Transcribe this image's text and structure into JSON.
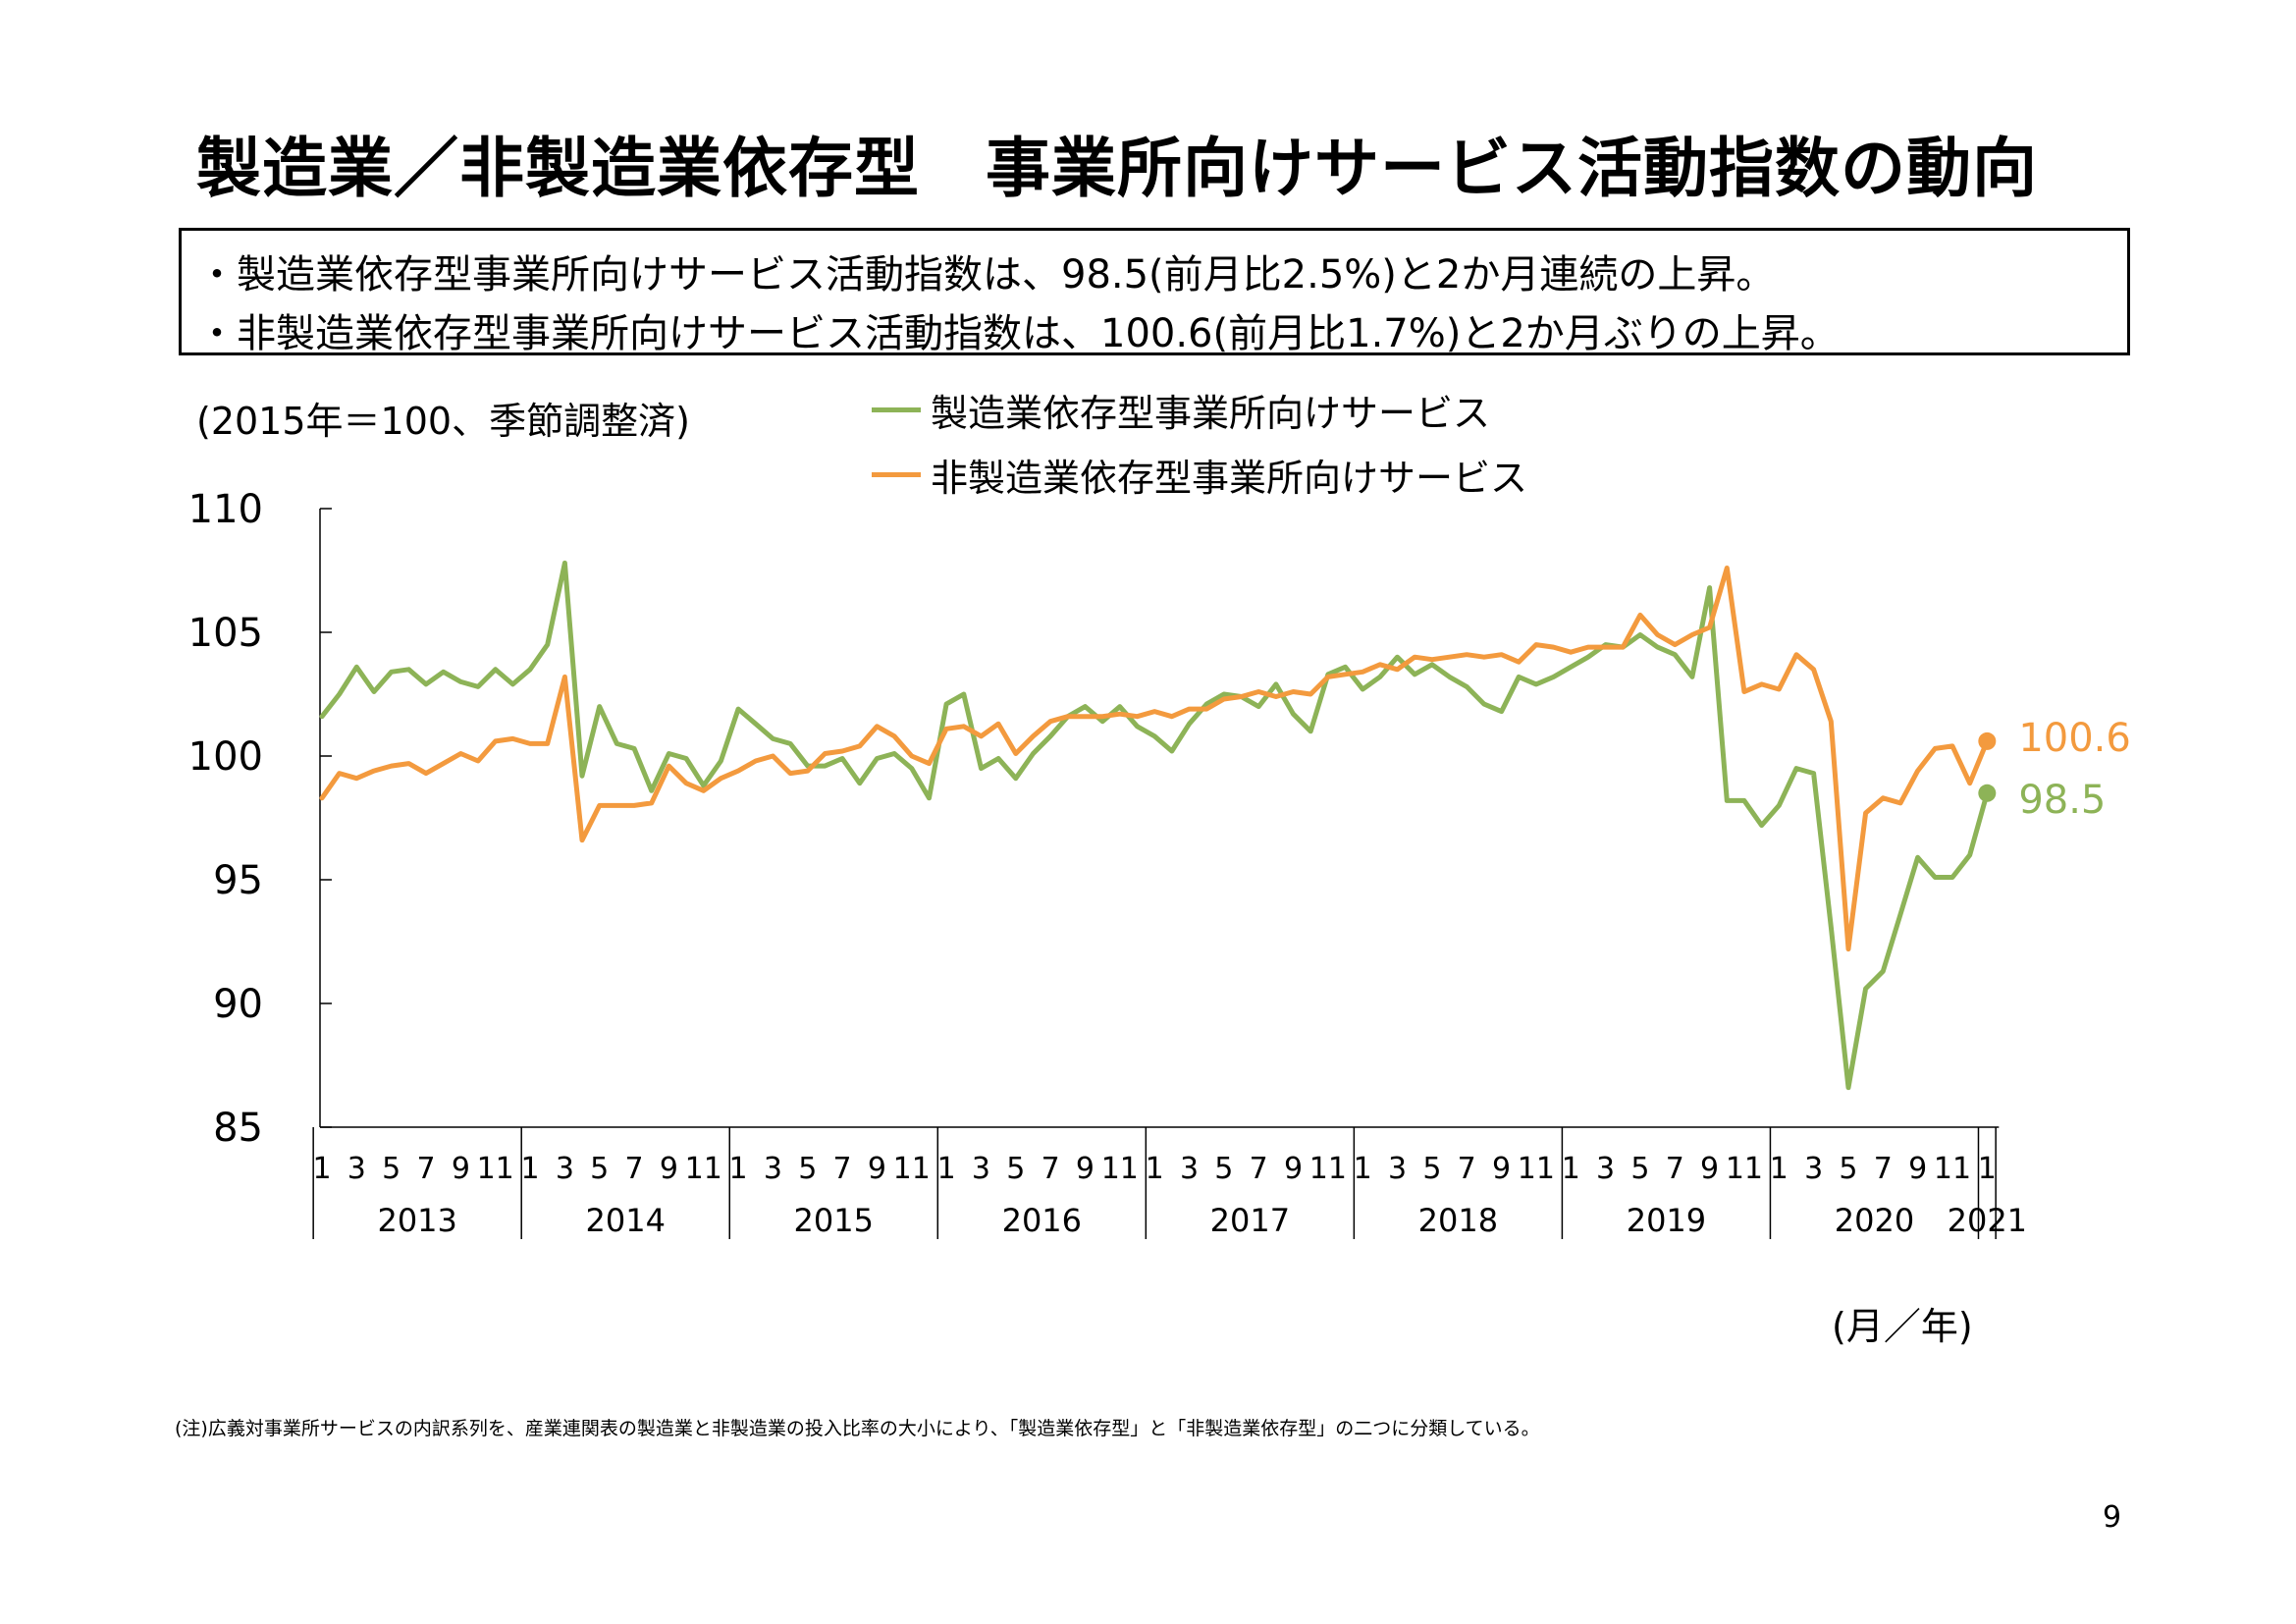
{
  "title": "製造業／非製造業依存型　事業所向けサービス活動指数の動向",
  "summary": {
    "line1": "・製造業依存型事業所向けサービス活動指数は、98.5(前月比2.5%)と2か月連続の上昇。",
    "line2": "・非製造業依存型事業所向けサービス活動指数は、100.6(前月比1.7%)と2か月ぶりの上昇。"
  },
  "unit_note": "(2015年＝100、季節調整済)",
  "axis_unit": "(月／年)",
  "footnote": "(注)広義対事業所サービスの内訳系列を、産業連関表の製造業と非製造業の投入比率の大小により、「製造業依存型」と「非製造業依存型」の二つに分類している。",
  "page_number": "9",
  "colors": {
    "green": "#8db357",
    "orange": "#f39a3e"
  },
  "chart_data": {
    "type": "line",
    "ylim": [
      85,
      110
    ],
    "yticks": [
      "110",
      "105",
      "100",
      "95",
      "90",
      "85"
    ],
    "month_labels": [
      "1",
      "3",
      "5",
      "7",
      "9",
      "11"
    ],
    "years": [
      "2013",
      "2014",
      "2015",
      "2016",
      "2017",
      "2018",
      "2019",
      "2020",
      "2021"
    ],
    "x_start": "2013-01",
    "x_end": "2021-01",
    "series": [
      {
        "name": "製造業依存型事業所向けサービス",
        "color": "#8db357",
        "end_label": "98.5",
        "values": [
          101.6,
          102.5,
          103.6,
          102.6,
          103.4,
          103.5,
          102.9,
          103.4,
          103.0,
          102.8,
          103.5,
          102.9,
          103.5,
          104.5,
          107.8,
          99.2,
          102.0,
          100.5,
          100.3,
          98.6,
          100.1,
          99.9,
          98.8,
          99.8,
          101.9,
          101.3,
          100.7,
          100.5,
          99.6,
          99.6,
          99.9,
          98.9,
          99.9,
          100.1,
          99.5,
          98.3,
          102.1,
          102.5,
          99.5,
          99.9,
          99.1,
          100.1,
          100.8,
          101.6,
          102.0,
          101.4,
          102.0,
          101.2,
          100.8,
          100.2,
          101.3,
          102.1,
          102.5,
          102.4,
          102.0,
          102.9,
          101.7,
          101.0,
          103.3,
          103.6,
          102.7,
          103.2,
          104.0,
          103.3,
          103.7,
          103.2,
          102.8,
          102.1,
          101.8,
          103.2,
          102.9,
          103.2,
          103.6,
          104.0,
          104.5,
          104.4,
          104.9,
          104.4,
          104.1,
          103.2,
          106.8,
          98.2,
          98.2,
          97.2,
          98.0,
          99.5,
          99.3,
          93.1,
          86.6,
          90.6,
          91.3,
          93.6,
          95.9,
          95.1,
          95.1,
          96.0,
          98.5
        ]
      },
      {
        "name": "非製造業依存型事業所向けサービス",
        "color": "#f39a3e",
        "end_label": "100.6",
        "values": [
          98.3,
          99.3,
          99.1,
          99.4,
          99.6,
          99.7,
          99.3,
          99.7,
          100.1,
          99.8,
          100.6,
          100.7,
          100.5,
          100.5,
          103.2,
          96.6,
          98.0,
          98.0,
          98.0,
          98.1,
          99.6,
          98.9,
          98.6,
          99.1,
          99.4,
          99.8,
          100.0,
          99.3,
          99.4,
          100.1,
          100.2,
          100.4,
          101.2,
          100.8,
          100.0,
          99.7,
          101.1,
          101.2,
          100.8,
          101.3,
          100.1,
          100.8,
          101.4,
          101.6,
          101.6,
          101.6,
          101.7,
          101.6,
          101.8,
          101.6,
          101.9,
          101.9,
          102.3,
          102.4,
          102.6,
          102.4,
          102.6,
          102.5,
          103.2,
          103.3,
          103.4,
          103.7,
          103.5,
          104.0,
          103.9,
          104.0,
          104.1,
          104.0,
          104.1,
          103.8,
          104.5,
          104.4,
          104.2,
          104.4,
          104.4,
          104.4,
          105.7,
          104.9,
          104.5,
          104.9,
          105.2,
          107.6,
          102.6,
          102.9,
          102.7,
          104.1,
          103.5,
          101.4,
          92.2,
          97.7,
          98.3,
          98.1,
          99.4,
          100.3,
          100.4,
          98.9,
          100.6
        ]
      }
    ]
  }
}
